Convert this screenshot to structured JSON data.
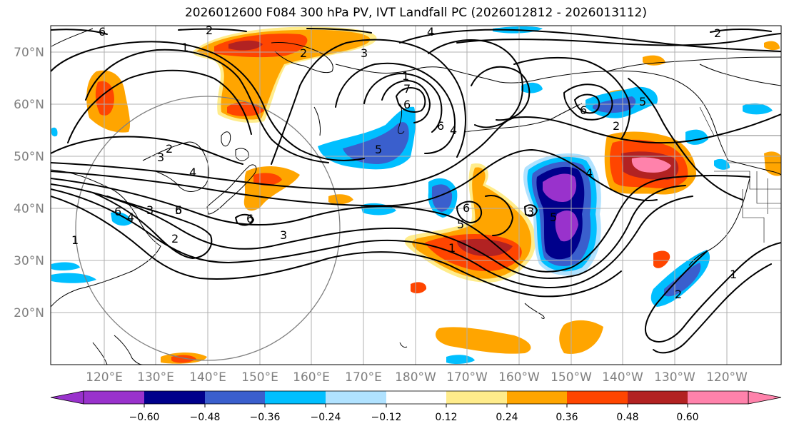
{
  "title": "2026012600 F084 300 hPa PV, IVT Landfall PC (2026012812 - 2026013112)",
  "lat_labels": [
    "70°N",
    "60°N",
    "50°N",
    "40°N",
    "30°N",
    "20°N"
  ],
  "lon_labels": [
    "120°E",
    "130°E",
    "140°E",
    "150°E",
    "160°E",
    "170°E",
    "180°W",
    "170°W",
    "160°W",
    "150°W",
    "140°W",
    "130°W",
    "120°W"
  ],
  "colorbar": {
    "colors": [
      "#9932cc",
      "#00008b",
      "#3a5fcd",
      "#00bfff",
      "#b0e2ff",
      "#ffffff",
      "#ffec8b",
      "#ffa500",
      "#ff4500",
      "#b22222",
      "#ff82ab"
    ],
    "tick_labels": [
      "−0.60",
      "−0.48",
      "−0.36",
      "−0.24",
      "−0.12",
      "0.12",
      "0.24",
      "0.36",
      "0.48",
      "0.60"
    ]
  },
  "contour_labels": [
    "6",
    "2",
    "1",
    "2",
    "4",
    "2",
    "3",
    "2",
    "3",
    "4",
    "5",
    "6",
    "1",
    "7",
    "6",
    "4",
    "5",
    "6",
    "5",
    "6",
    "2",
    "3",
    "4",
    "5",
    "6",
    "4",
    "3",
    "2",
    "1",
    "1",
    "3",
    "6",
    "2",
    "1",
    "5",
    "6"
  ]
}
